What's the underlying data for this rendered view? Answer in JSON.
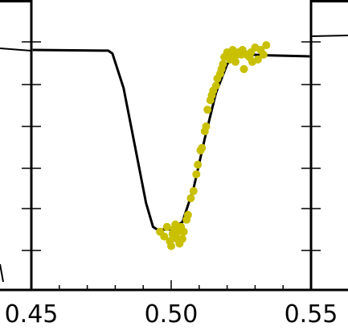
{
  "chart_data": {
    "type": "scatter",
    "title": "",
    "xlabel": "",
    "ylabel": "",
    "xlim": [
      0.45,
      0.55
    ],
    "x_ticks": [
      "0.45",
      "0.50",
      "0.55"
    ],
    "grid": false,
    "colors": {
      "points": "#c8c000",
      "model": "#000000",
      "axes": "#000000"
    },
    "series": [
      {
        "type": "line",
        "x": [
          0.4505,
          0.4775,
          0.479,
          0.483,
          0.487,
          0.491,
          0.4935,
          0.495,
          0.5,
          0.504,
          0.508,
          0.512,
          0.516,
          0.52,
          0.523,
          0.529,
          0.535,
          0.5495
        ],
        "y": [
          0.0,
          0.003,
          0.015,
          0.16,
          0.4,
          0.64,
          0.74,
          0.751,
          0.751,
          0.72,
          0.58,
          0.37,
          0.18,
          0.06,
          0.018,
          0.02,
          0.023,
          0.027
        ]
      },
      {
        "type": "scatter",
        "x": [
          0.496,
          0.4975,
          0.4985,
          0.4995,
          0.5,
          0.5005,
          0.501,
          0.5015,
          0.502,
          0.5025,
          0.503,
          0.5035,
          0.504,
          0.5045,
          0.5055,
          0.506,
          0.507,
          0.508,
          0.509,
          0.5095,
          0.5105,
          0.511,
          0.512,
          0.5125,
          0.513,
          0.514,
          0.5145,
          0.515,
          0.516,
          0.5165,
          0.5175,
          0.518,
          0.5185,
          0.519,
          0.52,
          0.521,
          0.5215,
          0.522,
          0.523,
          0.5235,
          0.524,
          0.525,
          0.5255,
          0.526,
          0.527,
          0.528,
          0.5285,
          0.529,
          0.53,
          0.531,
          0.532,
          0.533,
          0.534
        ],
        "y": [
          0.76,
          0.78,
          0.74,
          0.8,
          0.82,
          0.77,
          0.75,
          0.73,
          0.79,
          0.76,
          0.81,
          0.74,
          0.79,
          0.76,
          0.71,
          0.69,
          0.62,
          0.59,
          0.52,
          0.48,
          0.42,
          0.41,
          0.34,
          0.32,
          0.25,
          0.21,
          0.19,
          0.17,
          0.15,
          0.12,
          0.1,
          0.08,
          0.06,
          0.03,
          0.01,
          0.04,
          0.03,
          0.0,
          0.05,
          0.02,
          0.01,
          0.02,
          0.0,
          0.08,
          0.02,
          0.03,
          0.01,
          0.05,
          -0.01,
          0.04,
          0.0,
          0.02,
          -0.02
        ]
      }
    ]
  }
}
